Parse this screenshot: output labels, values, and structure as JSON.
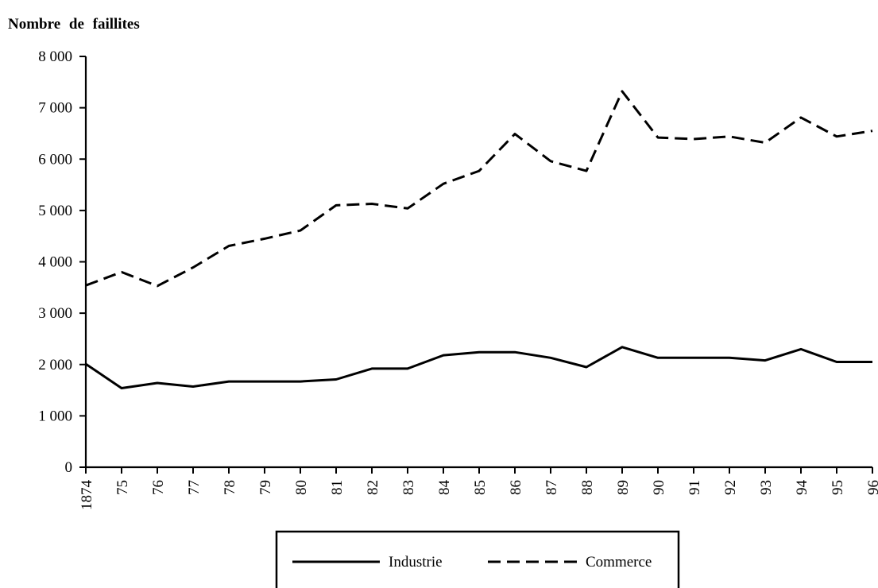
{
  "chart_data": {
    "type": "line",
    "ylabel": "Nombre de faillites",
    "xlabel": "",
    "ylim": [
      0,
      8000
    ],
    "yticks": [
      0,
      1000,
      2000,
      3000,
      4000,
      5000,
      6000,
      7000,
      8000
    ],
    "ytick_labels": [
      "0",
      "1 000",
      "2 000",
      "3 000",
      "4 000",
      "5 000",
      "6 000",
      "7 000",
      "8 000"
    ],
    "x": [
      1874,
      1875,
      1876,
      1877,
      1878,
      1879,
      1880,
      1881,
      1882,
      1883,
      1884,
      1885,
      1886,
      1887,
      1888,
      1889,
      1890,
      1891,
      1892,
      1893,
      1894,
      1895,
      1896
    ],
    "x_tick_labels": [
      "1874",
      "75",
      "76",
      "77",
      "78",
      "79",
      "80",
      "81",
      "82",
      "83",
      "84",
      "85",
      "86",
      "87",
      "88",
      "89",
      "90",
      "91",
      "92",
      "93",
      "94",
      "95",
      "96"
    ],
    "grid": false,
    "legend_position": "bottom",
    "series": [
      {
        "name": "Industrie",
        "style": "solid",
        "color": "#000000",
        "values": [
          2010,
          1540,
          1640,
          1570,
          1670,
          1670,
          1670,
          1710,
          1920,
          1920,
          2180,
          2240,
          2240,
          2130,
          1950,
          2340,
          2130,
          2130,
          2130,
          2080,
          2300,
          2050,
          2050
        ]
      },
      {
        "name": "Commerce",
        "style": "dashed",
        "color": "#000000",
        "values": [
          3540,
          3800,
          3530,
          3890,
          4310,
          4450,
          4610,
          5100,
          5130,
          5040,
          5520,
          5770,
          6490,
          5960,
          5770,
          7320,
          6420,
          6390,
          6440,
          6320,
          6810,
          6440,
          6550
        ]
      }
    ]
  }
}
